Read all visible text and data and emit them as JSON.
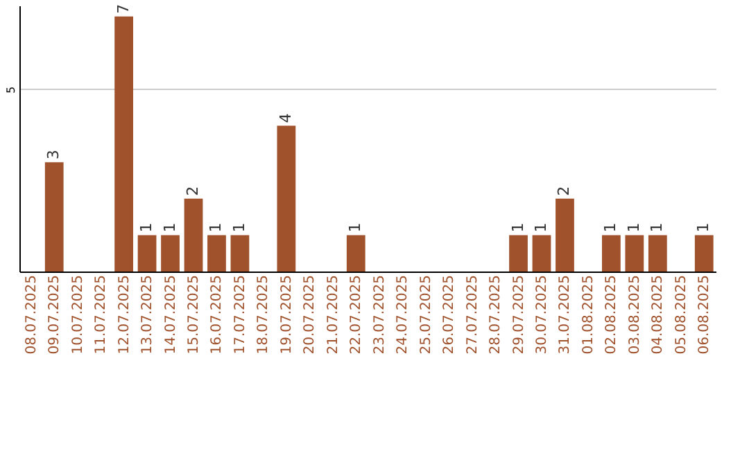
{
  "chart_data": {
    "type": "bar",
    "categories": [
      "08.07.2025",
      "09.07.2025",
      "10.07.2025",
      "11.07.2025",
      "12.07.2025",
      "13.07.2025",
      "14.07.2025",
      "15.07.2025",
      "16.07.2025",
      "17.07.2025",
      "18.07.2025",
      "19.07.2025",
      "20.07.2025",
      "21.07.2025",
      "22.07.2025",
      "23.07.2025",
      "24.07.2025",
      "25.07.2025",
      "26.07.2025",
      "27.07.2025",
      "28.07.2025",
      "29.07.2025",
      "30.07.2025",
      "31.07.2025",
      "01.08.2025",
      "02.08.2025",
      "03.08.2025",
      "04.08.2025",
      "05.08.2025",
      "06.08.2025"
    ],
    "values": [
      0,
      3,
      0,
      0,
      7,
      1,
      1,
      2,
      1,
      1,
      0,
      4,
      0,
      0,
      1,
      0,
      0,
      0,
      0,
      0,
      0,
      1,
      1,
      2,
      0,
      1,
      1,
      1,
      0,
      1
    ],
    "value_labels": [
      null,
      "3",
      null,
      null,
      "7",
      "1",
      "1",
      "2",
      "1",
      "1",
      null,
      "4",
      null,
      null,
      "1",
      null,
      null,
      null,
      null,
      null,
      null,
      "1",
      "1",
      "2",
      null,
      "1",
      "1",
      "1",
      null,
      "1"
    ],
    "color": "#a0522d",
    "ylim": [
      0,
      7.3
    ],
    "yticks": [
      5
    ],
    "grid": "y"
  }
}
